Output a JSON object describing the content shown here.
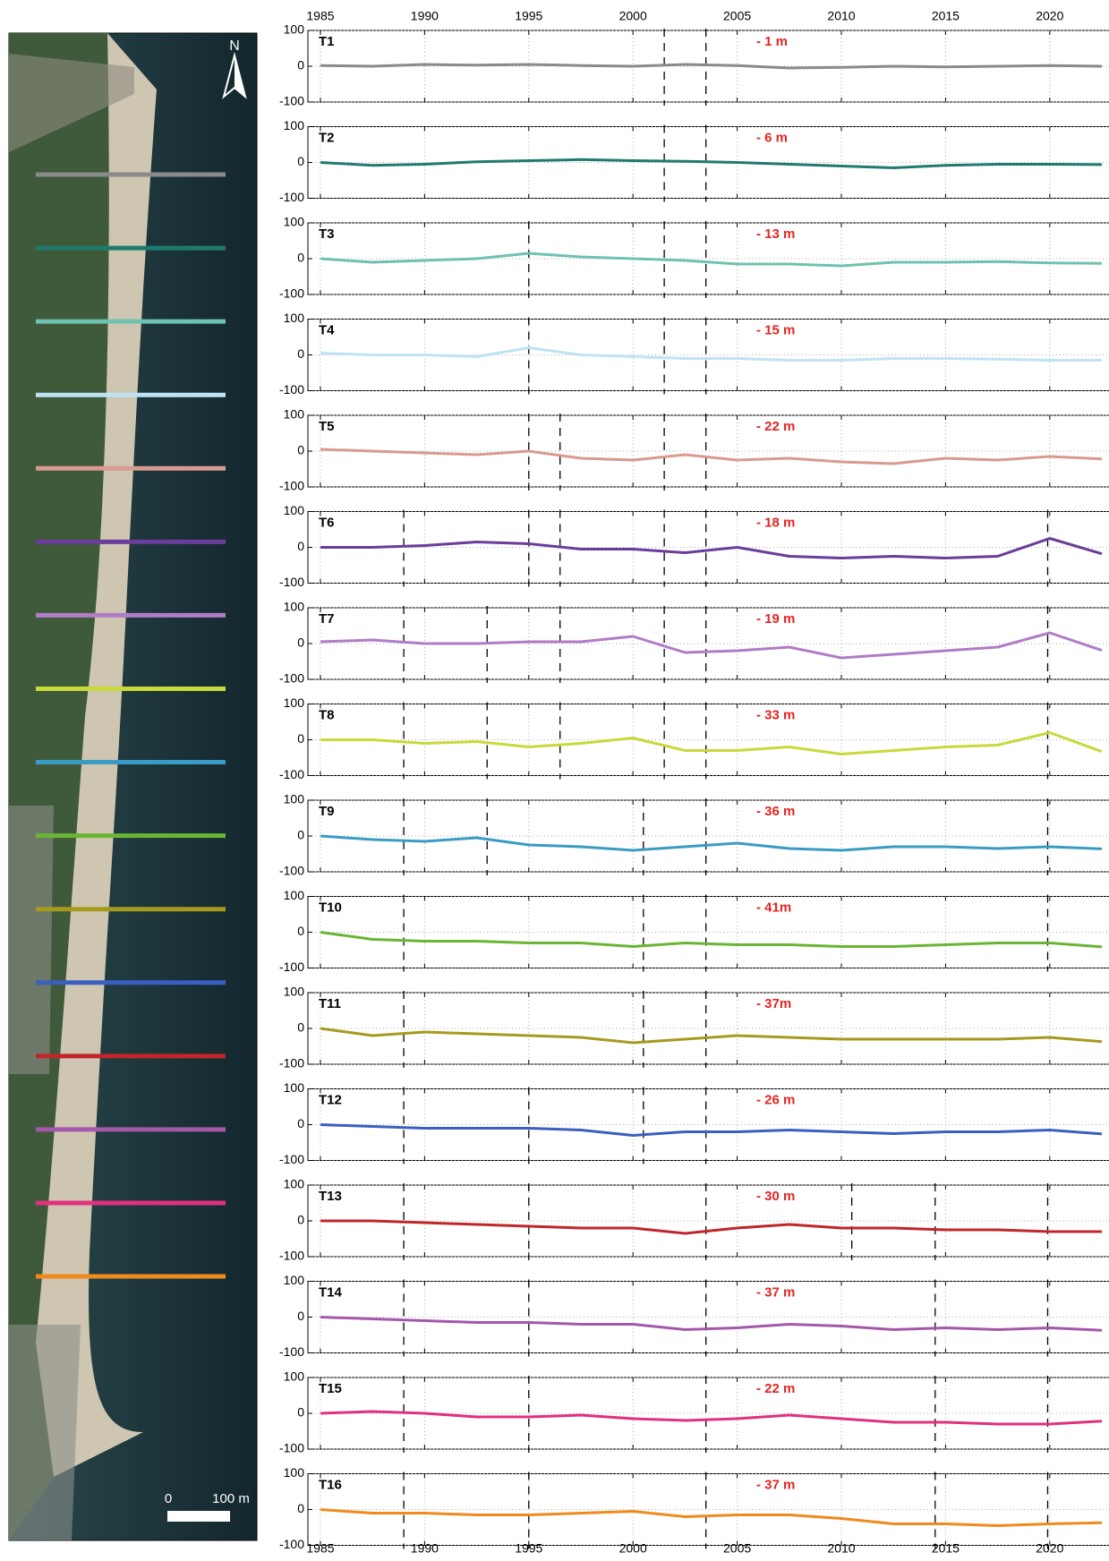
{
  "map": {
    "north": "N",
    "scale_zero": "0",
    "scale_length": "100 m"
  },
  "chart_data": [
    {
      "type": "line",
      "title": "T1",
      "annotation": "- 1 m",
      "color": "#8a8a8a",
      "x": [
        1985,
        1987.5,
        1990,
        1992.5,
        1995,
        1997.5,
        2000,
        2002.5,
        2005,
        2007.5,
        2010,
        2012.5,
        2015,
        2017.5,
        2020,
        2022.5
      ],
      "values": [
        2,
        0,
        5,
        3,
        5,
        2,
        0,
        5,
        2,
        -5,
        -3,
        0,
        -2,
        0,
        2,
        0
      ],
      "events": [
        2001.5,
        2003.5
      ],
      "xlim": [
        1984.4,
        2022.8
      ],
      "xticks": [
        1985,
        1990,
        1995,
        2000,
        2005,
        2010,
        2015,
        2020
      ],
      "ylim": [
        -100,
        100
      ],
      "yticks": [
        -100,
        0,
        100
      ],
      "grid": true
    },
    {
      "type": "line",
      "title": "T2",
      "annotation": "- 6 m",
      "color": "#1f7a6e",
      "x": [
        1985,
        1987.5,
        1990,
        1992.5,
        1995,
        1997.5,
        2000,
        2002.5,
        2005,
        2007.5,
        2010,
        2012.5,
        2015,
        2017.5,
        2020,
        2022.5
      ],
      "values": [
        0,
        -8,
        -5,
        2,
        5,
        8,
        5,
        3,
        0,
        -5,
        -10,
        -15,
        -8,
        -5,
        -5,
        -6
      ],
      "events": [
        2001.5,
        2003.5
      ],
      "xlim": [
        1984.4,
        2022.8
      ],
      "xticks": [
        1985,
        1990,
        1995,
        2000,
        2005,
        2010,
        2015,
        2020
      ],
      "ylim": [
        -100,
        100
      ],
      "yticks": [
        -100,
        0,
        100
      ],
      "grid": true
    },
    {
      "type": "line",
      "title": "T3",
      "annotation": "- 13 m",
      "color": "#6fc1b0",
      "x": [
        1985,
        1987.5,
        1990,
        1992.5,
        1995,
        1997.5,
        2000,
        2002.5,
        2005,
        2007.5,
        2010,
        2012.5,
        2015,
        2017.5,
        2020,
        2022.5
      ],
      "values": [
        0,
        -10,
        -5,
        0,
        15,
        5,
        0,
        -5,
        -15,
        -15,
        -20,
        -10,
        -10,
        -8,
        -12,
        -13
      ],
      "events": [
        1995,
        2001.5,
        2003.5
      ],
      "xlim": [
        1984.4,
        2022.8
      ],
      "xticks": [
        1985,
        1990,
        1995,
        2000,
        2005,
        2010,
        2015,
        2020
      ],
      "ylim": [
        -100,
        100
      ],
      "yticks": [
        -100,
        0,
        100
      ],
      "grid": true
    },
    {
      "type": "line",
      "title": "T4",
      "annotation": "- 15 m",
      "color": "#bfe3f2",
      "x": [
        1985,
        1987.5,
        1990,
        1992.5,
        1995,
        1997.5,
        2000,
        2002.5,
        2005,
        2007.5,
        2010,
        2012.5,
        2015,
        2017.5,
        2020,
        2022.5
      ],
      "values": [
        5,
        0,
        0,
        -5,
        20,
        0,
        -5,
        -10,
        -10,
        -15,
        -15,
        -10,
        -10,
        -12,
        -15,
        -15
      ],
      "events": [
        1995,
        2001.5,
        2003.5
      ],
      "xlim": [
        1984.4,
        2022.8
      ],
      "xticks": [
        1985,
        1990,
        1995,
        2000,
        2005,
        2010,
        2015,
        2020
      ],
      "ylim": [
        -100,
        100
      ],
      "yticks": [
        -100,
        0,
        100
      ],
      "grid": true
    },
    {
      "type": "line",
      "title": "T5",
      "annotation": "- 22 m",
      "color": "#d99a90",
      "x": [
        1985,
        1987.5,
        1990,
        1992.5,
        1995,
        1997.5,
        2000,
        2002.5,
        2005,
        2007.5,
        2010,
        2012.5,
        2015,
        2017.5,
        2020,
        2022.5
      ],
      "values": [
        5,
        0,
        -5,
        -10,
        0,
        -20,
        -25,
        -10,
        -25,
        -20,
        -30,
        -35,
        -20,
        -25,
        -15,
        -22
      ],
      "events": [
        1995,
        1996.5,
        2001.5,
        2003.5
      ],
      "xlim": [
        1984.4,
        2022.8
      ],
      "xticks": [
        1985,
        1990,
        1995,
        2000,
        2005,
        2010,
        2015,
        2020
      ],
      "ylim": [
        -100,
        100
      ],
      "yticks": [
        -100,
        0,
        100
      ],
      "grid": true
    },
    {
      "type": "line",
      "title": "T6",
      "annotation": "- 18 m",
      "color": "#6a3d9a",
      "x": [
        1985,
        1987.5,
        1990,
        1992.5,
        1995,
        1997.5,
        2000,
        2002.5,
        2005,
        2007.5,
        2010,
        2012.5,
        2015,
        2017.5,
        2020,
        2022.5
      ],
      "values": [
        0,
        0,
        5,
        15,
        10,
        -5,
        -5,
        -15,
        0,
        -25,
        -30,
        -25,
        -30,
        -25,
        25,
        -18
      ],
      "events": [
        1989,
        1995,
        1996.5,
        2001.5,
        2003.5,
        2019.9
      ],
      "xlim": [
        1984.4,
        2022.8
      ],
      "xticks": [
        1985,
        1990,
        1995,
        2000,
        2005,
        2010,
        2015,
        2020
      ],
      "ylim": [
        -100,
        100
      ],
      "yticks": [
        -100,
        0,
        100
      ],
      "grid": true
    },
    {
      "type": "line",
      "title": "T7",
      "annotation": "- 19 m",
      "color": "#b07cc6",
      "x": [
        1985,
        1987.5,
        1990,
        1992.5,
        1995,
        1997.5,
        2000,
        2002.5,
        2005,
        2007.5,
        2010,
        2012.5,
        2015,
        2017.5,
        2020,
        2022.5
      ],
      "values": [
        5,
        10,
        0,
        0,
        5,
        5,
        20,
        -25,
        -20,
        -10,
        -40,
        -30,
        -20,
        -10,
        30,
        -19
      ],
      "events": [
        1989,
        1993,
        1996.5,
        2001.5,
        2003.5,
        2019.9
      ],
      "xlim": [
        1984.4,
        2022.8
      ],
      "xticks": [
        1985,
        1990,
        1995,
        2000,
        2005,
        2010,
        2015,
        2020
      ],
      "ylim": [
        -100,
        100
      ],
      "yticks": [
        -100,
        0,
        100
      ],
      "grid": true
    },
    {
      "type": "line",
      "title": "T8",
      "annotation": "- 33 m",
      "color": "#c8d93a",
      "x": [
        1985,
        1987.5,
        1990,
        1992.5,
        1995,
        1997.5,
        2000,
        2002.5,
        2005,
        2007.5,
        2010,
        2012.5,
        2015,
        2017.5,
        2020,
        2022.5
      ],
      "values": [
        0,
        0,
        -10,
        -5,
        -20,
        -10,
        5,
        -30,
        -30,
        -20,
        -40,
        -30,
        -20,
        -15,
        20,
        -33
      ],
      "events": [
        1989,
        1993,
        1996.5,
        2001.5,
        2003.5,
        2019.9
      ],
      "xlim": [
        1984.4,
        2022.8
      ],
      "xticks": [
        1985,
        1990,
        1995,
        2000,
        2005,
        2010,
        2015,
        2020
      ],
      "ylim": [
        -100,
        100
      ],
      "yticks": [
        -100,
        0,
        100
      ],
      "grid": true
    },
    {
      "type": "line",
      "title": "T9",
      "annotation": "- 36 m",
      "color": "#3a9cc4",
      "x": [
        1985,
        1987.5,
        1990,
        1992.5,
        1995,
        1997.5,
        2000,
        2002.5,
        2005,
        2007.5,
        2010,
        2012.5,
        2015,
        2017.5,
        2020,
        2022.5
      ],
      "values": [
        0,
        -10,
        -15,
        -5,
        -25,
        -30,
        -40,
        -30,
        -20,
        -35,
        -40,
        -30,
        -30,
        -35,
        -30,
        -36
      ],
      "events": [
        1989,
        1993,
        2000.5,
        2003.5,
        2019.9
      ],
      "xlim": [
        1984.4,
        2022.8
      ],
      "xticks": [
        1985,
        1990,
        1995,
        2000,
        2005,
        2010,
        2015,
        2020
      ],
      "ylim": [
        -100,
        100
      ],
      "yticks": [
        -100,
        0,
        100
      ],
      "grid": true
    },
    {
      "type": "line",
      "title": "T10",
      "annotation": "- 41m",
      "color": "#6ab534",
      "x": [
        1985,
        1987.5,
        1990,
        1992.5,
        1995,
        1997.5,
        2000,
        2002.5,
        2005,
        2007.5,
        2010,
        2012.5,
        2015,
        2017.5,
        2020,
        2022.5
      ],
      "values": [
        0,
        -20,
        -25,
        -25,
        -30,
        -30,
        -40,
        -30,
        -35,
        -35,
        -40,
        -40,
        -35,
        -30,
        -30,
        -41
      ],
      "events": [
        1989,
        2000.5,
        2003.5,
        2019.9
      ],
      "xlim": [
        1984.4,
        2022.8
      ],
      "xticks": [
        1985,
        1990,
        1995,
        2000,
        2005,
        2010,
        2015,
        2020
      ],
      "ylim": [
        -100,
        100
      ],
      "yticks": [
        -100,
        0,
        100
      ],
      "grid": true
    },
    {
      "type": "line",
      "title": "T11",
      "annotation": "- 37m",
      "color": "#a59a1e",
      "x": [
        1985,
        1987.5,
        1990,
        1992.5,
        1995,
        1997.5,
        2000,
        2002.5,
        2005,
        2007.5,
        2010,
        2012.5,
        2015,
        2017.5,
        2020,
        2022.5
      ],
      "values": [
        0,
        -20,
        -10,
        -15,
        -20,
        -25,
        -40,
        -30,
        -20,
        -25,
        -30,
        -30,
        -30,
        -30,
        -25,
        -37
      ],
      "events": [
        1989,
        2000.5,
        2003.5
      ],
      "xlim": [
        1984.4,
        2022.8
      ],
      "xticks": [
        1985,
        1990,
        1995,
        2000,
        2005,
        2010,
        2015,
        2020
      ],
      "ylim": [
        -100,
        100
      ],
      "yticks": [
        -100,
        0,
        100
      ],
      "grid": true
    },
    {
      "type": "line",
      "title": "T12",
      "annotation": "- 26 m",
      "color": "#3a5fbf",
      "x": [
        1985,
        1987.5,
        1990,
        1992.5,
        1995,
        1997.5,
        2000,
        2002.5,
        2005,
        2007.5,
        2010,
        2012.5,
        2015,
        2017.5,
        2020,
        2022.5
      ],
      "values": [
        0,
        -5,
        -10,
        -10,
        -10,
        -15,
        -30,
        -20,
        -20,
        -15,
        -20,
        -25,
        -20,
        -20,
        -15,
        -26
      ],
      "events": [
        1989,
        1995,
        2000.5,
        2003.5
      ],
      "xlim": [
        1984.4,
        2022.8
      ],
      "xticks": [
        1985,
        1990,
        1995,
        2000,
        2005,
        2010,
        2015,
        2020
      ],
      "ylim": [
        -100,
        100
      ],
      "yticks": [
        -100,
        0,
        100
      ],
      "grid": true
    },
    {
      "type": "line",
      "title": "T13",
      "annotation": "- 30 m",
      "color": "#c0262b",
      "x": [
        1985,
        1987.5,
        1990,
        1992.5,
        1995,
        1997.5,
        2000,
        2002.5,
        2005,
        2007.5,
        2010,
        2012.5,
        2015,
        2017.5,
        2020,
        2022.5
      ],
      "values": [
        0,
        0,
        -5,
        -10,
        -15,
        -20,
        -20,
        -35,
        -20,
        -10,
        -20,
        -20,
        -25,
        -25,
        -30,
        -30
      ],
      "events": [
        1989,
        1995,
        2003.5,
        2010.5,
        2014.5,
        2019.9
      ],
      "xlim": [
        1984.4,
        2022.8
      ],
      "xticks": [
        1985,
        1990,
        1995,
        2000,
        2005,
        2010,
        2015,
        2020
      ],
      "ylim": [
        -100,
        100
      ],
      "yticks": [
        -100,
        0,
        100
      ],
      "grid": true
    },
    {
      "type": "line",
      "title": "T14",
      "annotation": "- 37 m",
      "color": "#a458ab",
      "x": [
        1985,
        1987.5,
        1990,
        1992.5,
        1995,
        1997.5,
        2000,
        2002.5,
        2005,
        2007.5,
        2010,
        2012.5,
        2015,
        2017.5,
        2020,
        2022.5
      ],
      "values": [
        0,
        -5,
        -10,
        -15,
        -15,
        -20,
        -20,
        -35,
        -30,
        -20,
        -25,
        -35,
        -30,
        -35,
        -30,
        -37
      ],
      "events": [
        1989,
        1995,
        2003.5,
        2014.5,
        2019.9
      ],
      "xlim": [
        1984.4,
        2022.8
      ],
      "xticks": [
        1985,
        1990,
        1995,
        2000,
        2005,
        2010,
        2015,
        2020
      ],
      "ylim": [
        -100,
        100
      ],
      "yticks": [
        -100,
        0,
        100
      ],
      "grid": true
    },
    {
      "type": "line",
      "title": "T15",
      "annotation": "- 22 m",
      "color": "#e0307e",
      "x": [
        1985,
        1987.5,
        1990,
        1992.5,
        1995,
        1997.5,
        2000,
        2002.5,
        2005,
        2007.5,
        2010,
        2012.5,
        2015,
        2017.5,
        2020,
        2022.5
      ],
      "values": [
        0,
        5,
        0,
        -10,
        -10,
        -5,
        -15,
        -20,
        -15,
        -5,
        -15,
        -25,
        -25,
        -30,
        -30,
        -22
      ],
      "events": [
        1989,
        1995,
        2003.5,
        2014.5,
        2019.9
      ],
      "xlim": [
        1984.4,
        2022.8
      ],
      "xticks": [
        1985,
        1990,
        1995,
        2000,
        2005,
        2010,
        2015,
        2020
      ],
      "ylim": [
        -100,
        100
      ],
      "yticks": [
        -100,
        0,
        100
      ],
      "grid": true
    },
    {
      "type": "line",
      "title": "T16",
      "annotation": "- 37 m",
      "color": "#f08a1c",
      "x": [
        1985,
        1987.5,
        1990,
        1992.5,
        1995,
        1997.5,
        2000,
        2002.5,
        2005,
        2007.5,
        2010,
        2012.5,
        2015,
        2017.5,
        2020,
        2022.5
      ],
      "values": [
        0,
        -10,
        -10,
        -15,
        -15,
        -10,
        -5,
        -20,
        -15,
        -15,
        -25,
        -40,
        -40,
        -45,
        -40,
        -37
      ],
      "events": [
        1989,
        1995,
        2003.5,
        2014.5,
        2019.9
      ],
      "xlim": [
        1984.4,
        2022.8
      ],
      "xticks": [
        1985,
        1990,
        1995,
        2000,
        2005,
        2010,
        2015,
        2020
      ],
      "ylim": [
        -100,
        100
      ],
      "yticks": [
        -100,
        0,
        100
      ],
      "grid": true
    }
  ]
}
